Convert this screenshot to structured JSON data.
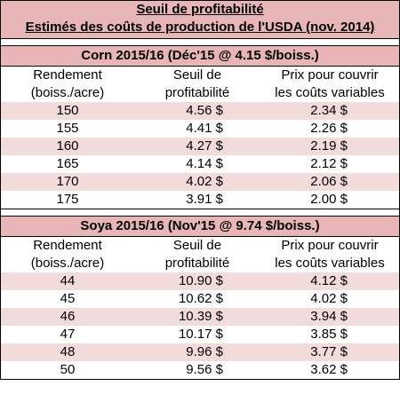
{
  "header": {
    "title": "Seuil de profitabilité",
    "subtitle": "Estimés des coûts de production de l'USDA (nov. 2014)"
  },
  "columns": [
    "Rendement (boiss./acre)",
    "Seuil de profitabilité",
    "Prix pour couvrir les coûts variables"
  ],
  "column_lines": [
    [
      "Rendement",
      "(boiss./acre)"
    ],
    [
      "Seuil de",
      "profitabilité"
    ],
    [
      "Prix pour couvrir",
      "les coûts variables"
    ]
  ],
  "sections": [
    {
      "title": "Corn 2015/16 (Déc'15 @ 4.15 $/boiss.)",
      "rows": [
        [
          "150",
          "4.56 $",
          "2.34 $"
        ],
        [
          "155",
          "4.41 $",
          "2.26 $"
        ],
        [
          "160",
          "4.27 $",
          "2.19 $"
        ],
        [
          "165",
          "4.14 $",
          "2.12 $"
        ],
        [
          "170",
          "4.02 $",
          "2.06 $"
        ],
        [
          "175",
          "3.91 $",
          "2.00 $"
        ]
      ]
    },
    {
      "title": "Soya 2015/16 (Nov'15 @ 9.74 $/boiss.)",
      "rows": [
        [
          "44",
          "10.90 $",
          "4.12 $"
        ],
        [
          "45",
          "10.62 $",
          "4.02 $"
        ],
        [
          "46",
          "10.39 $",
          "3.94 $"
        ],
        [
          "47",
          "10.17 $",
          "3.85 $"
        ],
        [
          "48",
          "9.96 $",
          "3.77 $"
        ],
        [
          "50",
          "9.56 $",
          "3.62 $"
        ]
      ]
    }
  ],
  "colors": {
    "header_bg": "#e8b6b7",
    "row_alt": "#f2dcdb",
    "border": "#000000"
  }
}
